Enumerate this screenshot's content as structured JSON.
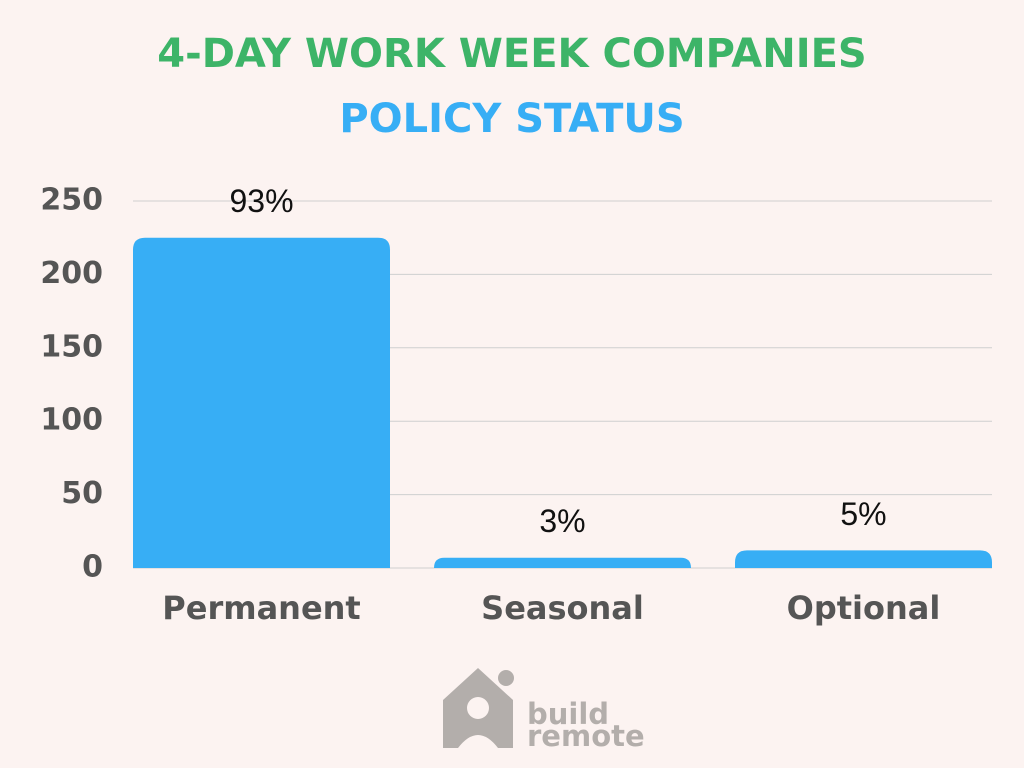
{
  "chart_data": {
    "type": "bar",
    "title": "4-DAY WORK WEEK COMPANIES",
    "subtitle": "POLICY STATUS",
    "categories": [
      "Permanent",
      "Seasonal",
      "Optional"
    ],
    "values": [
      225,
      7,
      12
    ],
    "annotations": [
      "93%",
      "3%",
      "5%"
    ],
    "color": "#37aef5",
    "ylim": [
      0,
      250
    ],
    "yticks": [
      0,
      50,
      100,
      150,
      200,
      250
    ],
    "grid": true
  },
  "logo_text": [
    "build",
    "remote"
  ]
}
